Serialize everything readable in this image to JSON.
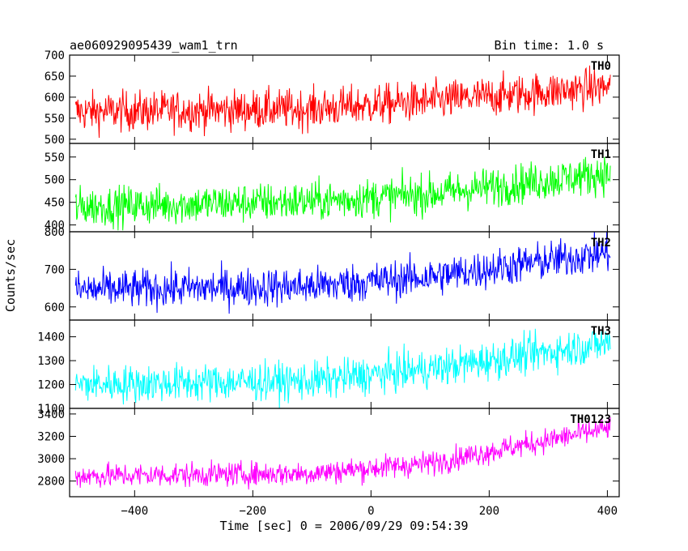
{
  "header": {
    "title": "ae060929095439_wam1_trn",
    "bin_time": "Bin time: 1.0 s"
  },
  "chart_data": {
    "type": "line",
    "xlabel": "Time [sec] 0 = 2006/09/29 09:54:39",
    "ylabel": "Counts/sec",
    "xlim": [
      -510,
      420
    ],
    "x_ticks": [
      -400,
      -200,
      0,
      200,
      400
    ],
    "x_tick_labels": [
      "−400",
      "−200",
      "0",
      "200",
      "400"
    ],
    "x_start": -500,
    "x_end": 405,
    "x_step": 1,
    "series": [
      {
        "name": "TH0",
        "color": "#ff0000",
        "ylim": [
          490,
          700
        ],
        "yticks": [
          500,
          550,
          600,
          650,
          700
        ],
        "trend": [
          [
            -500,
            565
          ],
          [
            -100,
            572
          ],
          [
            100,
            590
          ],
          [
            405,
            625
          ]
        ],
        "noise": 24
      },
      {
        "name": "TH1",
        "color": "#00ff00",
        "ylim": [
          385,
          580
        ],
        "yticks": [
          400,
          450,
          500,
          550
        ],
        "trend": [
          [
            -500,
            440
          ],
          [
            -100,
            452
          ],
          [
            100,
            468
          ],
          [
            405,
            515
          ]
        ],
        "noise": 22
      },
      {
        "name": "TH2",
        "color": "#0000ff",
        "ylim": [
          565,
          800
        ],
        "yticks": [
          600,
          700,
          800
        ],
        "trend": [
          [
            -500,
            645
          ],
          [
            -100,
            655
          ],
          [
            100,
            680
          ],
          [
            405,
            745
          ]
        ],
        "noise": 26
      },
      {
        "name": "TH3",
        "color": "#00ffff",
        "ylim": [
          1100,
          1470
        ],
        "yticks": [
          1100,
          1200,
          1300,
          1400
        ],
        "trend": [
          [
            -500,
            1200
          ],
          [
            -100,
            1215
          ],
          [
            100,
            1265
          ],
          [
            405,
            1375
          ]
        ],
        "noise": 40
      },
      {
        "name": "TH0123",
        "color": "#ff00ff",
        "ylim": [
          2660,
          3450
        ],
        "yticks": [
          2800,
          3000,
          3200,
          3400
        ],
        "trend": [
          [
            -500,
            2845
          ],
          [
            -100,
            2870
          ],
          [
            100,
            2960
          ],
          [
            405,
            3275
          ]
        ],
        "noise": 55
      }
    ]
  }
}
